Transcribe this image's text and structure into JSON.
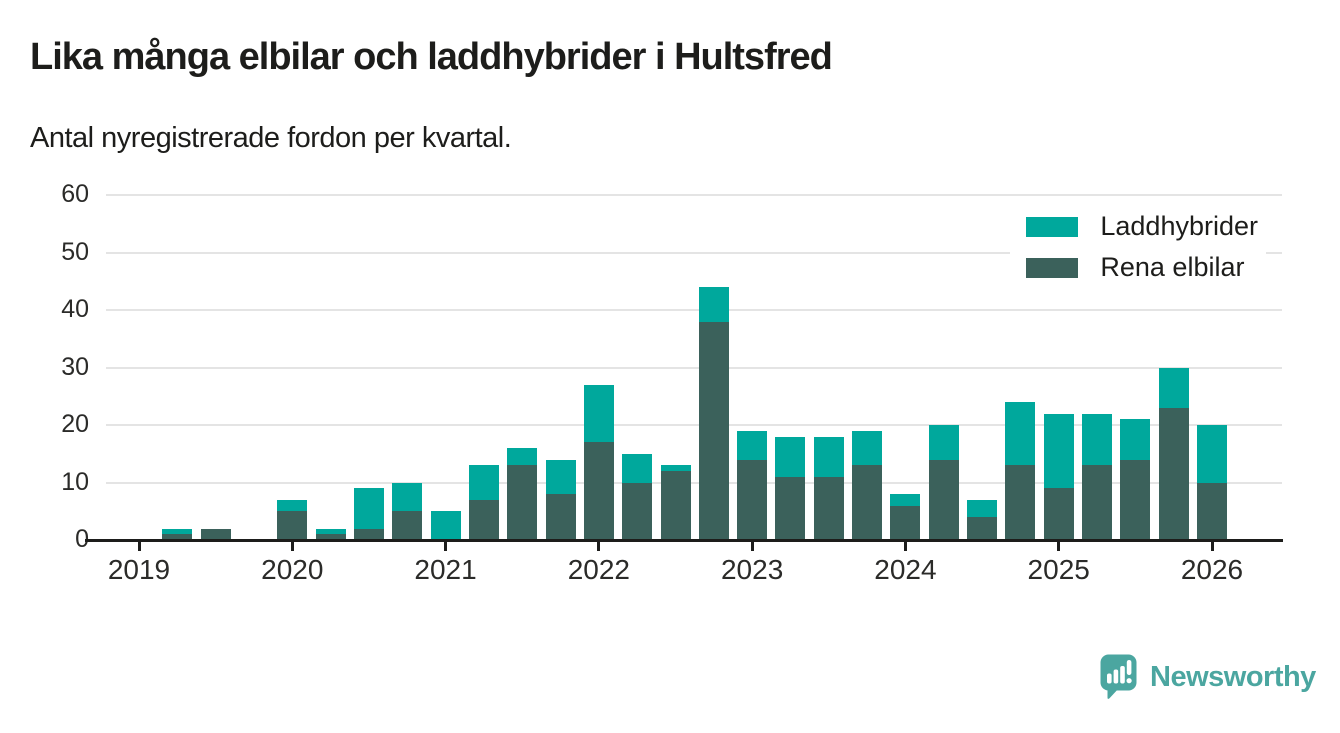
{
  "title": "Lika många elbilar och laddhybrider i Hultsfred",
  "subtitle": "Antal nyregistrerade fordon per kvartal.",
  "brand": {
    "name": "Newsworthy",
    "color": "#4ba6a0"
  },
  "colors": {
    "laddhybrider": "#00a89c",
    "rena_elbilar": "#3b615b",
    "axis": "#1d1d1b",
    "grid": "#e4e4e4"
  },
  "chart_data": {
    "type": "bar",
    "stacked": true,
    "title": "Lika många elbilar och laddhybrider i Hultsfred",
    "subtitle": "Antal nyregistrerade fordon per kvartal.",
    "ylabel": "",
    "xlabel": "",
    "ylim": [
      0,
      60
    ],
    "yticks": [
      0,
      10,
      20,
      30,
      40,
      50,
      60
    ],
    "grid": true,
    "legend_position": "top-right",
    "quarters": [
      "2019 Q1",
      "2019 Q2",
      "2019 Q3",
      "2019 Q4",
      "2020 Q1",
      "2020 Q2",
      "2020 Q3",
      "2020 Q4",
      "2021 Q1",
      "2021 Q2",
      "2021 Q3",
      "2021 Q4",
      "2022 Q1",
      "2022 Q2",
      "2022 Q3",
      "2022 Q4",
      "2023 Q1",
      "2023 Q2",
      "2023 Q3",
      "2023 Q4",
      "2024 Q1",
      "2024 Q2",
      "2024 Q3",
      "2024 Q4",
      "2025 Q1",
      "2025 Q2",
      "2025 Q3",
      "2025 Q4",
      "2026 Q1"
    ],
    "year_labels": [
      "2019",
      "2020",
      "2021",
      "2022",
      "2023",
      "2024",
      "2025",
      "2026"
    ],
    "stack_order_bottom_to_top": [
      "Rena elbilar",
      "Laddhybrider"
    ],
    "series": [
      {
        "name": "Laddhybrider",
        "color": "#00a89c",
        "values": [
          0,
          1,
          0,
          0,
          2,
          1,
          7,
          5,
          5,
          6,
          3,
          6,
          10,
          5,
          1,
          6,
          5,
          7,
          7,
          6,
          2,
          6,
          3,
          11,
          13,
          9,
          7,
          7,
          10
        ]
      },
      {
        "name": "Rena elbilar",
        "color": "#3b615b",
        "values": [
          0,
          1,
          2,
          0,
          5,
          1,
          2,
          5,
          0,
          7,
          13,
          8,
          17,
          10,
          12,
          38,
          14,
          11,
          11,
          13,
          6,
          14,
          4,
          13,
          9,
          13,
          14,
          23,
          10
        ]
      }
    ],
    "totals": [
      0,
      2,
      2,
      0,
      7,
      2,
      9,
      10,
      5,
      13,
      16,
      14,
      27,
      15,
      13,
      44,
      19,
      18,
      18,
      19,
      8,
      20,
      7,
      24,
      22,
      22,
      21,
      30,
      20
    ]
  }
}
